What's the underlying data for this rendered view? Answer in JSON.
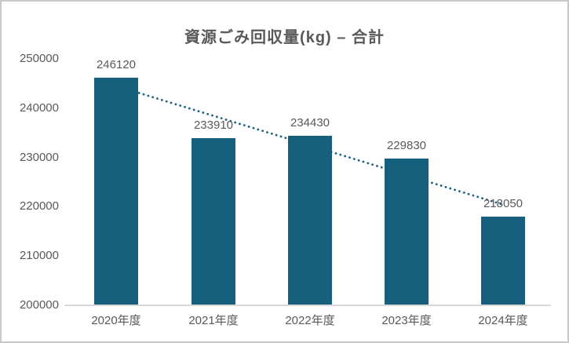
{
  "frame": {
    "background": "#ffffff",
    "border_color": "#c9c9c9"
  },
  "chart_data": {
    "type": "bar",
    "title": "資源ごみ回収量(kg) – 合計",
    "categories": [
      "2020年度",
      "2021年度",
      "2022年度",
      "2023年度",
      "2024年度"
    ],
    "values": [
      246120,
      233910,
      234430,
      229830,
      218050
    ],
    "xlabel": "",
    "ylabel": "",
    "ylim": [
      200000,
      250000
    ],
    "ytick_step": 10000,
    "yticks": [
      "200000",
      "210000",
      "220000",
      "230000",
      "240000",
      "250000"
    ],
    "grid": false,
    "legend": "none",
    "bar_color": "#16607e",
    "text_color": "#595959",
    "axis_line_color": "#d9d9d9",
    "trendline": {
      "type": "linear",
      "style": "dotted",
      "color": "#1c6386",
      "start_value": 244512,
      "end_value": 220424
    }
  }
}
